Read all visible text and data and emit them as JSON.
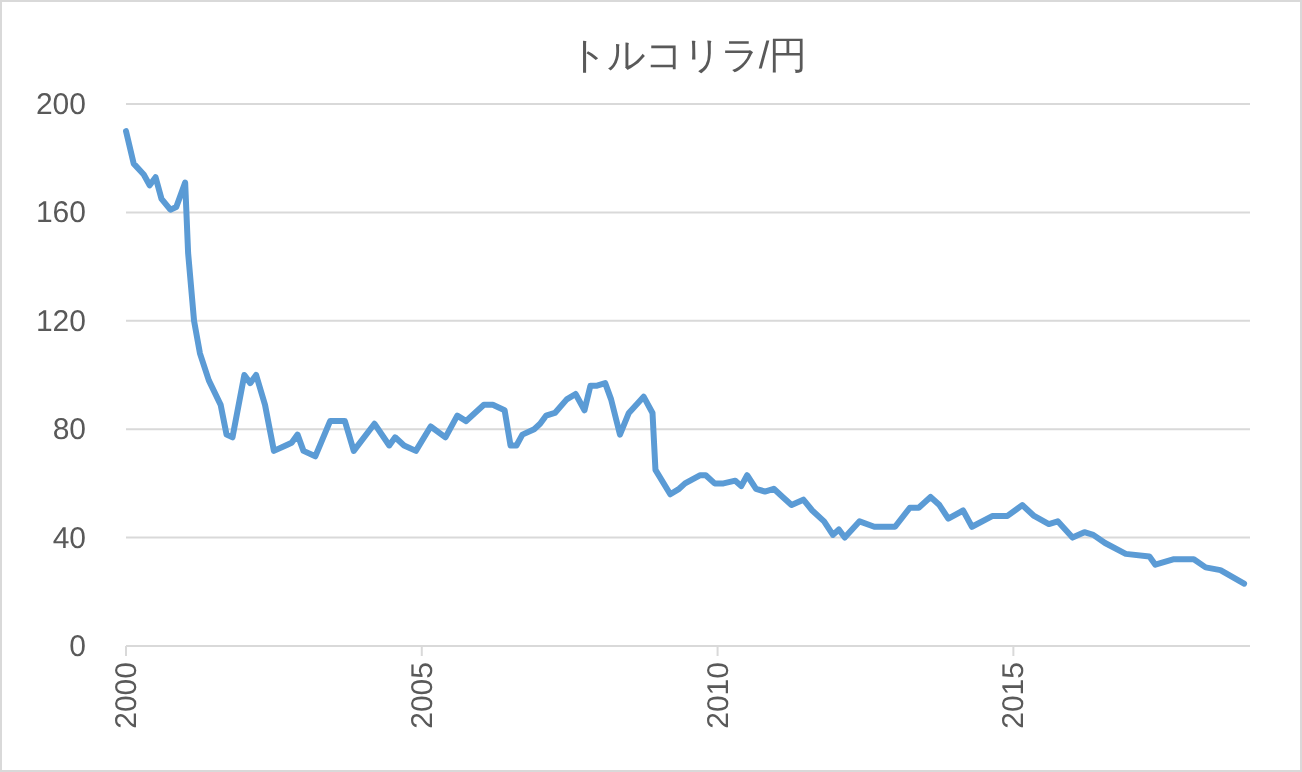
{
  "chart_data": {
    "type": "line",
    "title": "トルコリラ/円",
    "color": "#5b9bd5",
    "grid": "y",
    "xlim": [
      2000,
      2019
    ],
    "xticks": [
      2000,
      2005,
      2010,
      2015
    ],
    "ylim": [
      0,
      200
    ],
    "yticks": [
      0,
      40,
      80,
      120,
      160,
      200
    ],
    "x": [
      2000.0,
      2000.13,
      2000.3,
      2000.4,
      2000.5,
      2000.6,
      2000.75,
      2000.85,
      2001.0,
      2001.05,
      2001.15,
      2001.25,
      2001.4,
      2001.6,
      2001.7,
      2001.8,
      2002.0,
      2002.1,
      2002.2,
      2002.35,
      2002.5,
      2002.7,
      2002.8,
      2002.9,
      2003.0,
      2003.2,
      2003.45,
      2003.7,
      2003.85,
      2004.2,
      2004.45,
      2004.55,
      2004.7,
      2004.9,
      2005.15,
      2005.4,
      2005.6,
      2005.75,
      2006.05,
      2006.2,
      2006.4,
      2006.5,
      2006.6,
      2006.7,
      2006.9,
      2007.0,
      2007.1,
      2007.25,
      2007.45,
      2007.6,
      2007.75,
      2007.85,
      2007.95,
      2008.1,
      2008.2,
      2008.35,
      2008.5,
      2008.75,
      2008.9,
      2008.95,
      2009.2,
      2009.35,
      2009.45,
      2009.7,
      2009.8,
      2009.95,
      2010.1,
      2010.3,
      2010.4,
      2010.5,
      2010.65,
      2010.8,
      2010.95,
      2011.1,
      2011.25,
      2011.45,
      2011.6,
      2011.8,
      2011.95,
      2012.05,
      2012.15,
      2012.4,
      2012.65,
      2013.0,
      2013.25,
      2013.4,
      2013.6,
      2013.75,
      2013.9,
      2014.15,
      2014.3,
      2014.65,
      2014.9,
      2015.15,
      2015.35,
      2015.6,
      2015.75,
      2016.0,
      2016.2,
      2016.35,
      2016.55,
      2016.9,
      2017.3,
      2017.4,
      2017.7,
      2018.05,
      2018.25,
      2018.5,
      2018.9
    ],
    "values": [
      190,
      178,
      174,
      170,
      173,
      165,
      161,
      162,
      171,
      145,
      120,
      108,
      98,
      89,
      78,
      77,
      100,
      97,
      100,
      89,
      72,
      74,
      75,
      78,
      72,
      70,
      83,
      83,
      72,
      82,
      74,
      77,
      74,
      72,
      81,
      77,
      85,
      83,
      89,
      89,
      87,
      74,
      74,
      78,
      80,
      82,
      85,
      86,
      91,
      93,
      87,
      96,
      96,
      97,
      91,
      78,
      86,
      92,
      86,
      65,
      56,
      58,
      60,
      63,
      63,
      60,
      60,
      61,
      59,
      63,
      58,
      57,
      58,
      55,
      52,
      54,
      50,
      46,
      41,
      43,
      40,
      46,
      44,
      44,
      51,
      51,
      55,
      52,
      47,
      50,
      44,
      48,
      48,
      52,
      48,
      45,
      46,
      40,
      42,
      41,
      38,
      34,
      33,
      30,
      32,
      32,
      29,
      28,
      23
    ]
  }
}
